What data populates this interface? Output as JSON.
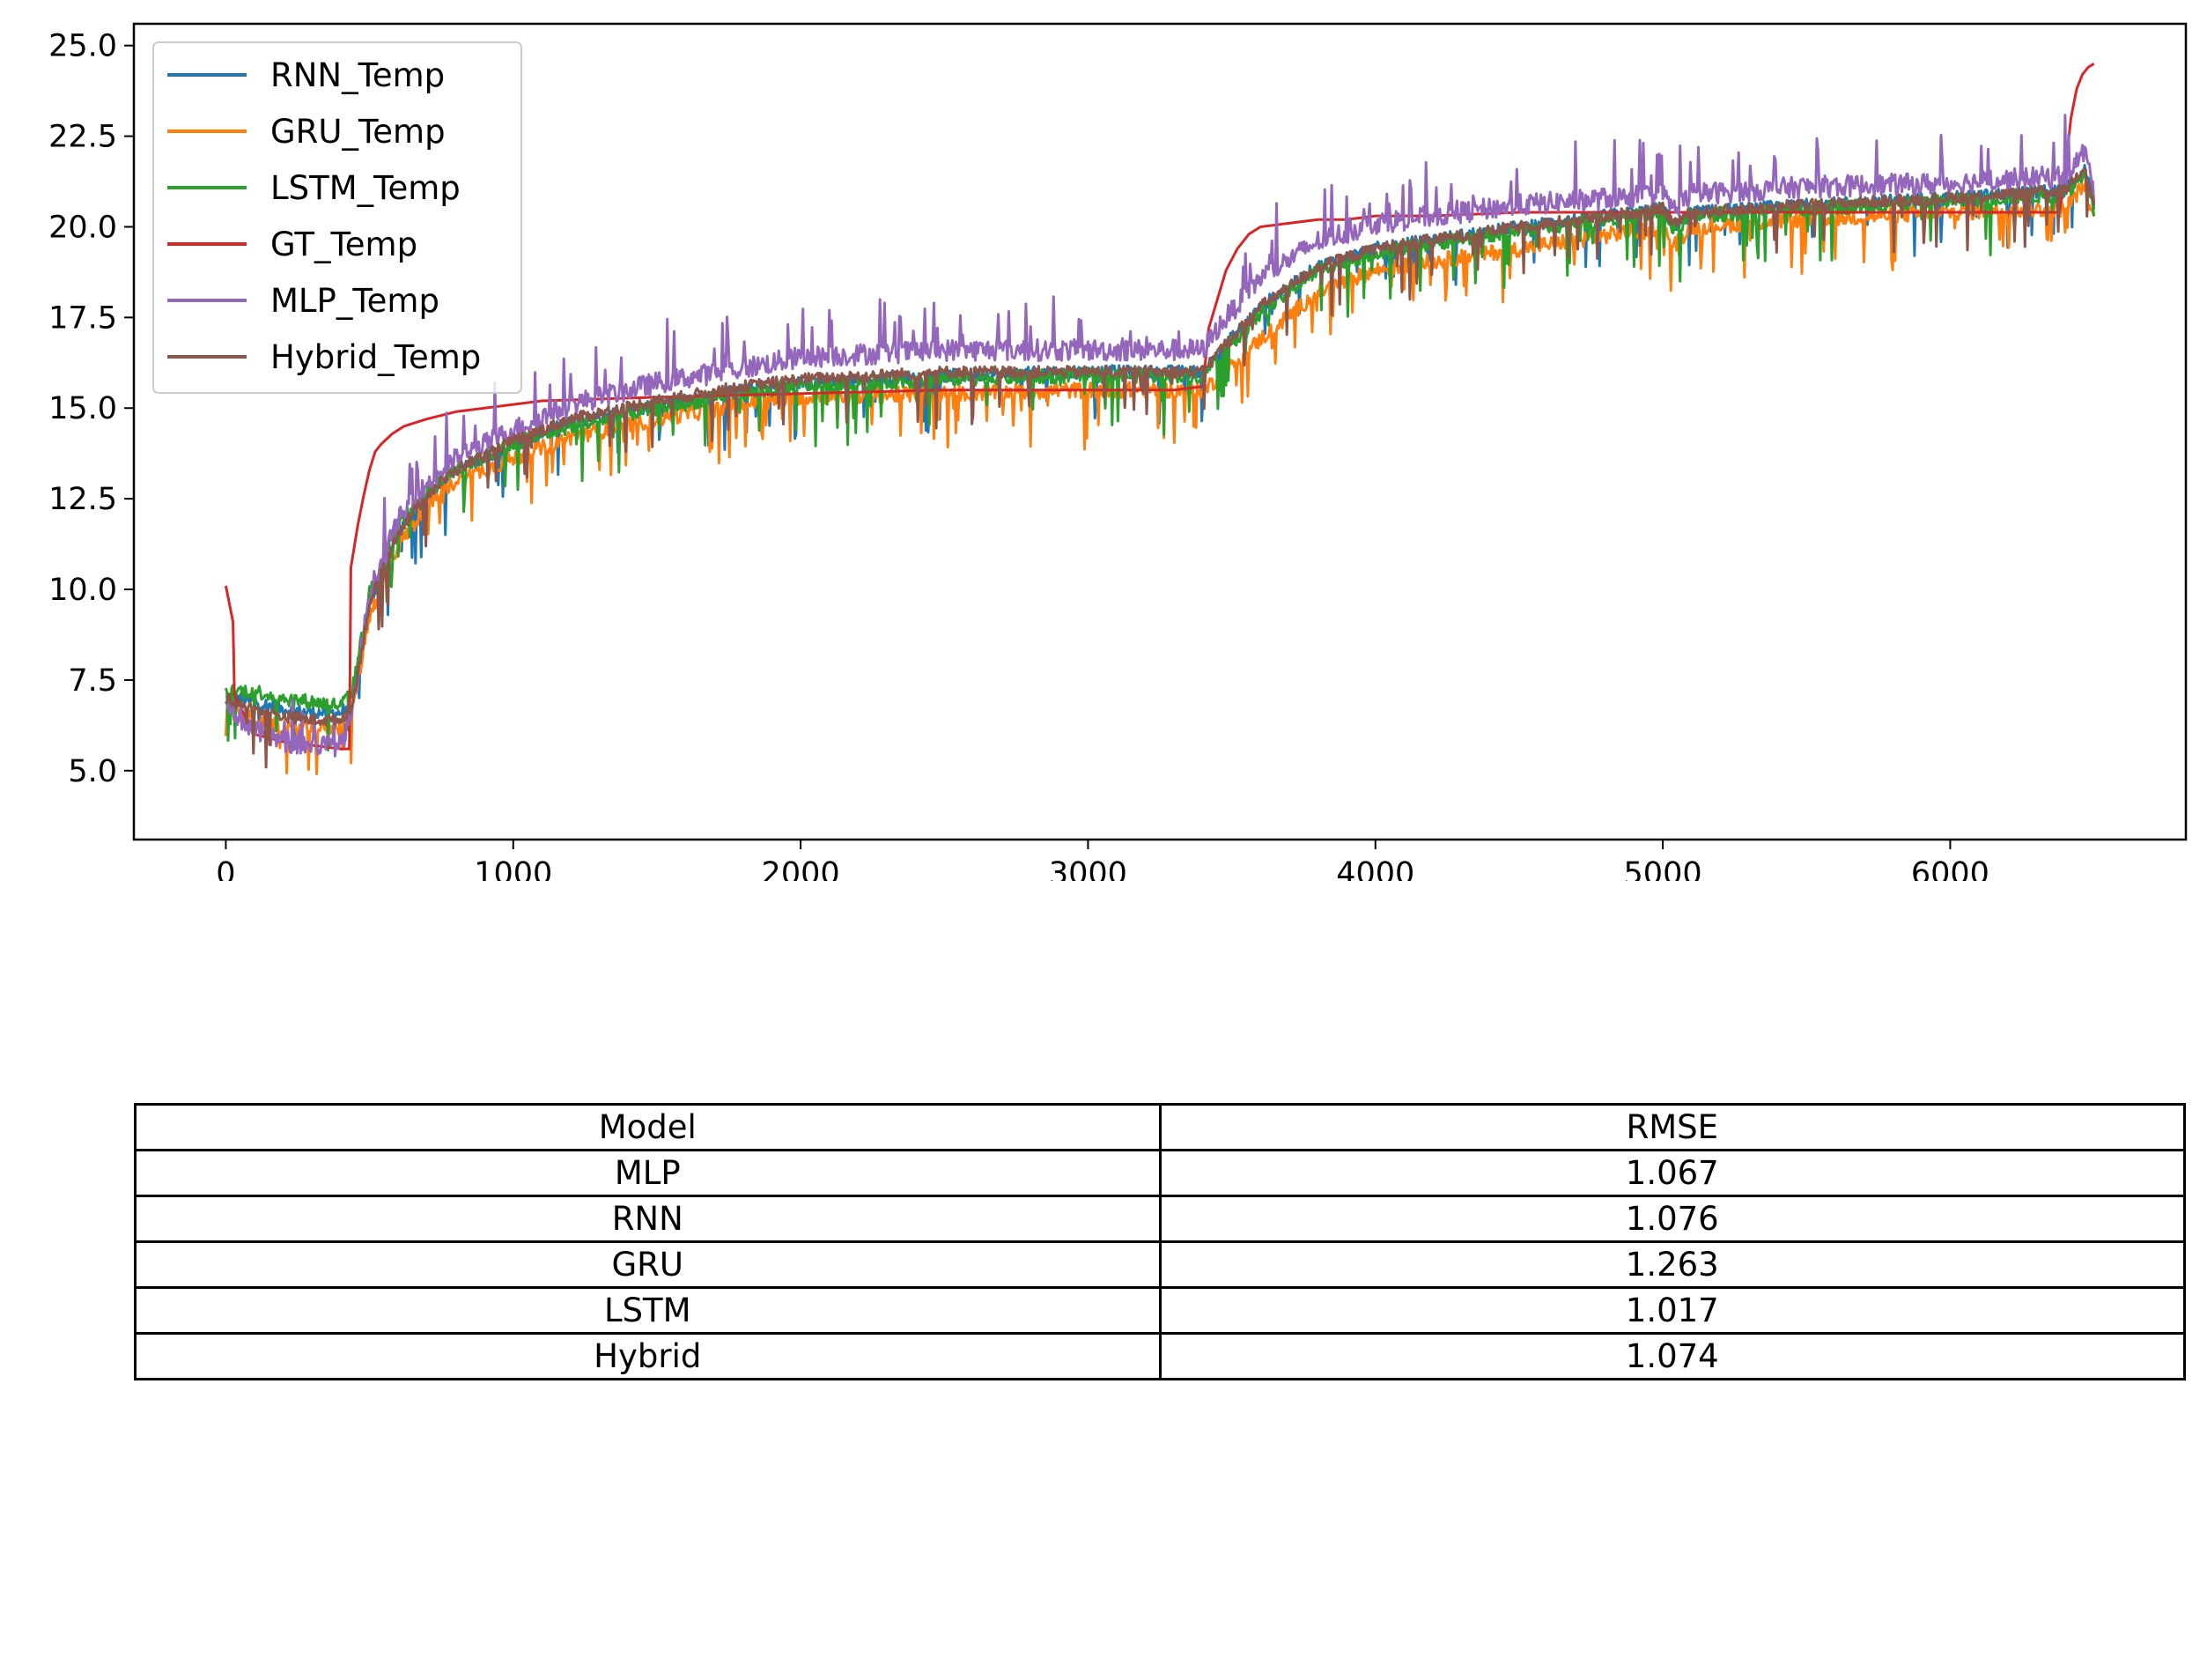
{
  "chart_data": {
    "type": "line",
    "title": "",
    "xlabel": "",
    "ylabel": "",
    "xlim": [
      -320,
      6820
    ],
    "ylim": [
      3.1,
      25.6
    ],
    "xticks": [
      0,
      1000,
      2000,
      3000,
      4000,
      5000,
      6000
    ],
    "xtick_labels": [
      "0",
      "1000",
      "2000",
      "3000",
      "4000",
      "5000",
      "6000"
    ],
    "yticks": [
      5.0,
      7.5,
      10.0,
      12.5,
      15.0,
      17.5,
      20.0,
      22.5,
      25.0
    ],
    "ytick_labels": [
      "5.0",
      "7.5",
      "10.0",
      "12.5",
      "15.0",
      "17.5",
      "20.0",
      "22.5",
      "25.0"
    ],
    "grid": false,
    "legend_position": "upper-left",
    "series": [
      {
        "name": "RNN_Temp",
        "color": "#1f77b4",
        "x": [
          0,
          30,
          100,
          200,
          300,
          400,
          440,
          500,
          600,
          700,
          800,
          1000,
          1200,
          1500,
          1800,
          2000,
          2500,
          3000,
          3400,
          3450,
          3600,
          3800,
          4000,
          4500,
          5000,
          5040,
          5100,
          5500,
          6000,
          6400,
          6470,
          6500
        ],
        "y": [
          7.0,
          7.0,
          6.9,
          6.7,
          6.6,
          6.6,
          7.0,
          9.6,
          11.5,
          12.6,
          13.3,
          14.0,
          14.6,
          15.1,
          15.5,
          15.7,
          15.9,
          16.0,
          16.0,
          16.5,
          17.8,
          18.9,
          19.4,
          20.0,
          20.5,
          20.0,
          20.4,
          20.6,
          20.8,
          21.0,
          21.6,
          20.6
        ]
      },
      {
        "name": "GRU_Temp",
        "color": "#ff7f0e",
        "x": [
          0,
          30,
          100,
          200,
          300,
          400,
          440,
          500,
          600,
          700,
          800,
          1000,
          1200,
          1500,
          1800,
          2000,
          2500,
          3000,
          3400,
          3450,
          3600,
          3800,
          4000,
          4500,
          5000,
          5040,
          5100,
          5500,
          6000,
          6400,
          6470,
          6500
        ],
        "y": [
          6.8,
          6.6,
          6.4,
          6.2,
          6.2,
          6.2,
          6.6,
          9.3,
          11.2,
          12.3,
          13.0,
          13.6,
          14.2,
          14.7,
          15.1,
          15.3,
          15.4,
          15.5,
          15.5,
          15.8,
          16.9,
          18.2,
          18.8,
          19.4,
          20.0,
          19.5,
          20.0,
          20.2,
          20.4,
          20.5,
          21.2,
          20.1
        ]
      },
      {
        "name": "LSTM_Temp",
        "color": "#2ca02c",
        "x": [
          0,
          30,
          100,
          200,
          300,
          400,
          440,
          500,
          600,
          700,
          800,
          1000,
          1200,
          1500,
          1800,
          2000,
          2500,
          3000,
          3400,
          3450,
          3600,
          3800,
          4000,
          4500,
          5000,
          5040,
          5100,
          5500,
          6000,
          6400,
          6470,
          6500
        ],
        "y": [
          7.1,
          7.2,
          7.2,
          7.0,
          6.9,
          6.8,
          7.2,
          9.9,
          11.8,
          12.7,
          13.3,
          14.0,
          14.5,
          15.0,
          15.4,
          15.6,
          15.8,
          15.9,
          15.9,
          16.4,
          17.6,
          18.8,
          19.3,
          19.9,
          20.4,
          19.9,
          20.3,
          20.5,
          20.7,
          20.9,
          21.5,
          20.5
        ]
      },
      {
        "name": "GT_Temp",
        "color": "#d62728",
        "x": [
          0,
          25,
          30,
          60,
          100,
          200,
          300,
          400,
          430,
          435,
          460,
          480,
          500,
          520,
          540,
          580,
          620,
          700,
          800,
          900,
          1000,
          1100,
          1500,
          2000,
          2500,
          3000,
          3300,
          3400,
          3420,
          3450,
          3480,
          3520,
          3560,
          3600,
          3700,
          3800,
          3900,
          4000,
          4200,
          4500,
          5000,
          6000,
          6380,
          6400,
          6420,
          6440,
          6460,
          6480,
          6500
        ],
        "y": [
          10.1,
          9.1,
          7.1,
          6.6,
          6.0,
          5.8,
          5.7,
          5.6,
          5.6,
          10.6,
          11.8,
          12.6,
          13.3,
          13.8,
          14.0,
          14.3,
          14.5,
          14.7,
          14.9,
          15.0,
          15.1,
          15.2,
          15.3,
          15.4,
          15.5,
          15.5,
          15.5,
          15.6,
          17.2,
          18.0,
          18.8,
          19.4,
          19.8,
          20.0,
          20.1,
          20.2,
          20.2,
          20.3,
          20.3,
          20.4,
          20.4,
          20.4,
          20.4,
          21.5,
          23.0,
          23.8,
          24.2,
          24.4,
          24.5
        ]
      },
      {
        "name": "MLP_Temp",
        "color": "#9467bd",
        "x": [
          0,
          30,
          100,
          200,
          300,
          400,
          440,
          500,
          600,
          700,
          800,
          1000,
          1200,
          1500,
          1800,
          2000,
          2500,
          3000,
          3400,
          3450,
          3600,
          3800,
          4000,
          4500,
          5000,
          5040,
          5100,
          5500,
          6000,
          6400,
          6470,
          6500
        ],
        "y": [
          7.1,
          6.6,
          6.1,
          5.8,
          5.7,
          5.7,
          6.6,
          9.9,
          11.9,
          12.9,
          13.6,
          14.4,
          15.1,
          15.7,
          16.1,
          16.4,
          16.6,
          16.6,
          16.6,
          17.2,
          18.6,
          19.6,
          20.1,
          20.6,
          20.9,
          20.5,
          20.9,
          21.1,
          21.2,
          21.4,
          22.1,
          20.9
        ]
      },
      {
        "name": "Hybrid_Temp",
        "color": "#8c564b",
        "x": [
          0,
          30,
          100,
          200,
          300,
          400,
          440,
          500,
          600,
          700,
          800,
          1000,
          1200,
          1500,
          1800,
          2000,
          2500,
          3000,
          3400,
          3450,
          3600,
          3800,
          4000,
          4500,
          5000,
          5040,
          5100,
          5500,
          6000,
          6400,
          6470,
          6500
        ],
        "y": [
          7.0,
          6.9,
          6.7,
          6.5,
          6.4,
          6.4,
          6.8,
          9.6,
          11.6,
          12.6,
          13.3,
          14.1,
          14.7,
          15.2,
          15.6,
          15.8,
          16.0,
          16.0,
          16.0,
          16.5,
          17.8,
          18.9,
          19.4,
          20.0,
          20.5,
          20.1,
          20.4,
          20.6,
          20.8,
          21.0,
          21.7,
          20.6
        ]
      }
    ]
  },
  "table": {
    "headers": [
      "Model",
      "RMSE"
    ],
    "rows": [
      [
        "MLP",
        "1.067"
      ],
      [
        "RNN",
        "1.076"
      ],
      [
        "GRU",
        "1.263"
      ],
      [
        "LSTM",
        "1.017"
      ],
      [
        "Hybrid",
        "1.074"
      ]
    ]
  }
}
